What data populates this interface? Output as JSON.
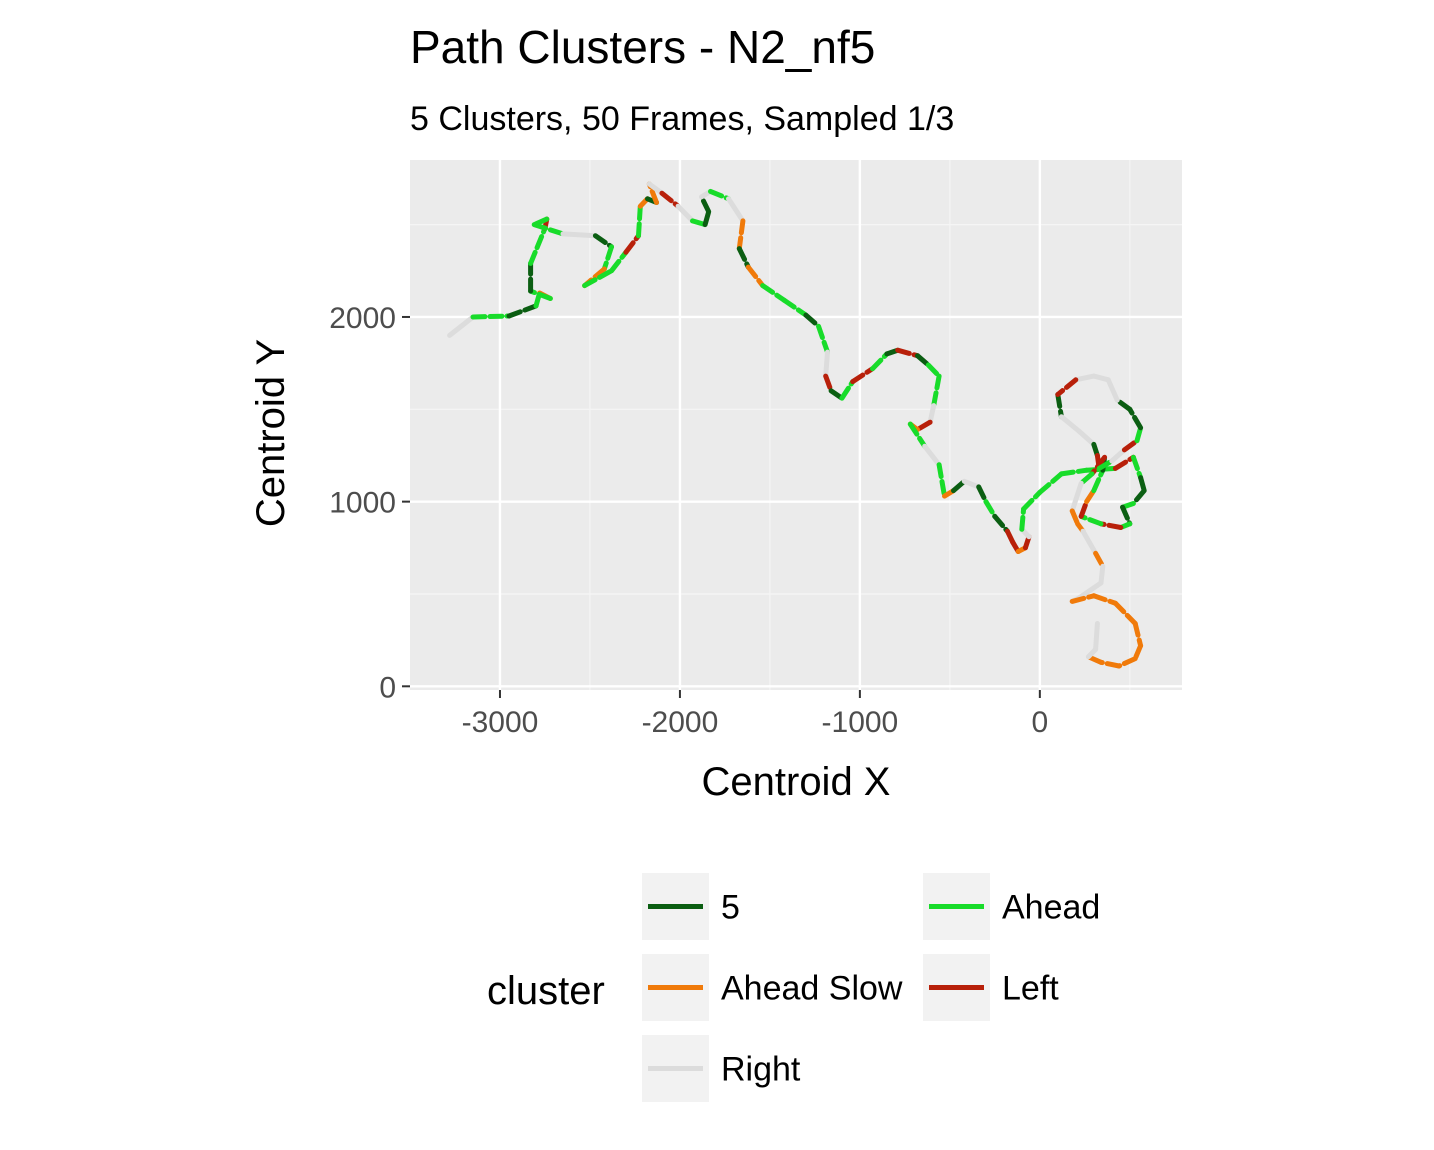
{
  "chart_data": {
    "type": "line",
    "title": "Path Clusters - N2_nf5",
    "subtitle": "5 Clusters, 50 Frames, Sampled 1/3",
    "xlabel": "Centroid X",
    "ylabel": "Centroid Y",
    "xlim": [
      -3500,
      790
    ],
    "ylim": [
      -20,
      2850
    ],
    "x_ticks": [
      -3000,
      -2000,
      -1000,
      0
    ],
    "x_tick_labels": [
      "-3000",
      "-2000",
      "-1000",
      "0"
    ],
    "y_ticks": [
      0,
      1000,
      2000
    ],
    "y_tick_labels": [
      "0",
      "1000",
      "2000"
    ],
    "grid": true,
    "legend": {
      "title": "cluster",
      "position": "bottom",
      "entries": [
        {
          "name": "5",
          "color": "#0b5e12"
        },
        {
          "name": "Ahead Slow",
          "color": "#f07a0a"
        },
        {
          "name": "Right",
          "color": "#dcdcdc"
        },
        {
          "name": "Ahead",
          "color": "#18dc2a"
        },
        {
          "name": "Left",
          "color": "#b8200a"
        }
      ]
    },
    "path": [
      [
        -3280,
        1900
      ],
      [
        -3150,
        2000
      ],
      [
        -2950,
        2005
      ],
      [
        -2800,
        2060
      ],
      [
        -2780,
        2130
      ],
      [
        -2720,
        2100
      ],
      [
        -2830,
        2140
      ],
      [
        -2830,
        2290
      ],
      [
        -2750,
        2480
      ],
      [
        -2740,
        2530
      ],
      [
        -2810,
        2500
      ],
      [
        -2650,
        2450
      ],
      [
        -2470,
        2440
      ],
      [
        -2380,
        2380
      ],
      [
        -2420,
        2260
      ],
      [
        -2530,
        2170
      ],
      [
        -2380,
        2250
      ],
      [
        -2300,
        2350
      ],
      [
        -2230,
        2440
      ],
      [
        -2220,
        2600
      ],
      [
        -2180,
        2640
      ],
      [
        -2130,
        2620
      ],
      [
        -2170,
        2720
      ],
      [
        -2100,
        2670
      ],
      [
        -2010,
        2600
      ],
      [
        -1930,
        2520
      ],
      [
        -1860,
        2500
      ],
      [
        -1840,
        2570
      ],
      [
        -1880,
        2650
      ],
      [
        -1830,
        2680
      ],
      [
        -1730,
        2640
      ],
      [
        -1650,
        2520
      ],
      [
        -1670,
        2370
      ],
      [
        -1620,
        2270
      ],
      [
        -1540,
        2170
      ],
      [
        -1420,
        2090
      ],
      [
        -1300,
        2010
      ],
      [
        -1230,
        1950
      ],
      [
        -1180,
        1810
      ],
      [
        -1190,
        1680
      ],
      [
        -1160,
        1600
      ],
      [
        -1100,
        1560
      ],
      [
        -1040,
        1650
      ],
      [
        -930,
        1720
      ],
      [
        -850,
        1800
      ],
      [
        -790,
        1820
      ],
      [
        -680,
        1790
      ],
      [
        -620,
        1740
      ],
      [
        -560,
        1680
      ],
      [
        -590,
        1520
      ],
      [
        -610,
        1430
      ],
      [
        -680,
        1390
      ],
      [
        -720,
        1420
      ],
      [
        -640,
        1300
      ],
      [
        -560,
        1200
      ],
      [
        -530,
        1030
      ],
      [
        -480,
        1060
      ],
      [
        -420,
        1110
      ],
      [
        -340,
        1080
      ],
      [
        -300,
        1000
      ],
      [
        -250,
        920
      ],
      [
        -180,
        840
      ],
      [
        -150,
        780
      ],
      [
        -120,
        730
      ],
      [
        -80,
        750
      ],
      [
        -60,
        810
      ],
      [
        -100,
        850
      ],
      [
        -90,
        960
      ],
      [
        0,
        1050
      ],
      [
        120,
        1150
      ],
      [
        260,
        1170
      ],
      [
        420,
        1180
      ],
      [
        520,
        1240
      ],
      [
        560,
        1130
      ],
      [
        580,
        1060
      ],
      [
        520,
        990
      ],
      [
        460,
        970
      ],
      [
        500,
        880
      ],
      [
        450,
        860
      ],
      [
        340,
        880
      ],
      [
        230,
        920
      ],
      [
        260,
        1000
      ],
      [
        300,
        1060
      ],
      [
        350,
        1170
      ],
      [
        360,
        1240
      ],
      [
        290,
        1150
      ],
      [
        230,
        1100
      ],
      [
        180,
        950
      ],
      [
        210,
        880
      ],
      [
        240,
        840
      ],
      [
        310,
        720
      ],
      [
        350,
        650
      ],
      [
        340,
        560
      ],
      [
        220,
        480
      ],
      [
        180,
        460
      ],
      [
        300,
        490
      ],
      [
        420,
        450
      ],
      [
        530,
        340
      ],
      [
        560,
        220
      ],
      [
        530,
        150
      ],
      [
        440,
        110
      ],
      [
        340,
        130
      ],
      [
        270,
        160
      ],
      [
        310,
        200
      ],
      [
        320,
        340
      ]
    ],
    "path_clusters": [
      "Right",
      "Ahead",
      "5",
      "Ahead",
      "Ahead Slow",
      "Ahead",
      "5",
      "Ahead",
      "Left",
      "Ahead",
      "Ahead",
      "Right",
      "5",
      "Ahead",
      "Ahead Slow",
      "Ahead",
      "Ahead",
      "Left",
      "Ahead",
      "Ahead Slow",
      "5",
      "Ahead Slow",
      "Right",
      "Left",
      "Right",
      "Ahead",
      "5",
      "5",
      "Right",
      "Ahead",
      "Right",
      "Ahead Slow",
      "5",
      "Ahead Slow",
      "Ahead",
      "Ahead",
      "5",
      "Ahead",
      "Right",
      "Left",
      "5",
      "Ahead",
      "Left",
      "Ahead",
      "5",
      "Left",
      "5",
      "Ahead",
      "Ahead",
      "Right",
      "Left",
      "Ahead Slow",
      "Ahead",
      "Right",
      "Ahead",
      "Ahead Slow",
      "5",
      "Right",
      "5",
      "Ahead",
      "5",
      "Left",
      "Left",
      "Ahead Slow",
      "Left",
      "Right",
      "Ahead",
      "Ahead",
      "Ahead",
      "Ahead",
      "Ahead",
      "Left",
      "Ahead",
      "5",
      "5",
      "Ahead",
      "5",
      "Ahead",
      "Left",
      "Ahead",
      "Left",
      "Ahead Slow",
      "Ahead",
      "5",
      "Left",
      "Ahead",
      "Right",
      "Ahead Slow",
      "Ahead Slow",
      "Right",
      "Ahead Slow",
      "Right",
      "Right",
      "Right",
      "Ahead Slow",
      "Ahead Slow",
      "Ahead Slow",
      "Ahead Slow",
      "Ahead Slow",
      "Ahead Slow",
      "Ahead Slow",
      "Ahead Slow",
      "Right",
      "Right"
    ],
    "loop_path": [
      [
        100,
        1580
      ],
      [
        120,
        1460
      ],
      [
        220,
        1380
      ],
      [
        300,
        1310
      ],
      [
        320,
        1250
      ],
      [
        330,
        1180
      ],
      [
        400,
        1220
      ],
      [
        470,
        1280
      ],
      [
        540,
        1330
      ],
      [
        560,
        1400
      ],
      [
        500,
        1500
      ],
      [
        430,
        1550
      ],
      [
        380,
        1660
      ],
      [
        300,
        1680
      ],
      [
        200,
        1660
      ],
      [
        100,
        1580
      ]
    ],
    "loop_clusters": [
      "5",
      "Right",
      "Right",
      "5",
      "Left",
      "Ahead",
      "Right",
      "Left",
      "Ahead",
      "5",
      "5",
      "Right",
      "Right",
      "Right",
      "Left"
    ]
  }
}
